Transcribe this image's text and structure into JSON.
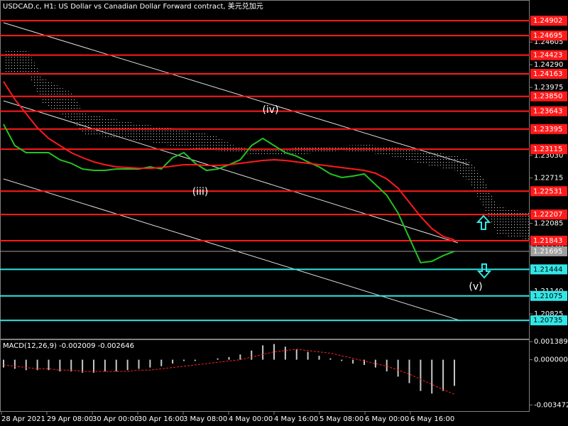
{
  "chart_data": {
    "type": "line",
    "title": "USDCAD.c, H1:  US Dollar vs Canadian Dollar Forward contract, 美元兑加元",
    "ylim": [
      1.205,
      1.2519
    ],
    "yticks": [
      1.24605,
      {
        "value": 1.2429,
        "label": "1.24290"
      },
      1.23975,
      {
        "value": 1.2303,
        "label": "1.23030"
      },
      1.22715,
      1.22085,
      {
        "value": 1.2177,
        "label": "1.21770"
      },
      {
        "value": 1.2114,
        "label": "1.21140"
      },
      1.20825
    ],
    "x_axis_labels": [
      "28 Apr 2021",
      "29 Apr 08:00",
      "30 Apr 00:00",
      "30 Apr 16:00",
      "3 May 08:00",
      "4 May 00:00",
      "4 May 16:00",
      "5 May 08:00",
      "6 May 00:00",
      "6 May 16:00"
    ],
    "series": [
      {
        "name": "Price",
        "color": "#22c322",
        "values": [
          1.23462,
          1.23166,
          1.23067,
          1.23067,
          1.23067,
          1.22968,
          1.22919,
          1.2284,
          1.2282,
          1.2282,
          1.2284,
          1.2284,
          1.2284,
          1.2287,
          1.2284,
          1.22998,
          1.23067,
          1.22919,
          1.2282,
          1.2284,
          1.22899,
          1.22968,
          1.23166,
          1.23265,
          1.23166,
          1.23067,
          1.23018,
          1.22939,
          1.2287,
          1.22771,
          1.22722,
          1.22741,
          1.22771,
          1.22623,
          1.22475,
          1.22228,
          1.21882,
          1.21537,
          1.21556,
          1.21635,
          1.21695
        ]
      },
      {
        "name": "MA",
        "color": "#ff1a1a",
        "values": [
          1.24055,
          1.23808,
          1.2361,
          1.23413,
          1.23265,
          1.23166,
          1.23067,
          1.22998,
          1.22939,
          1.22899,
          1.2287,
          1.2286,
          1.2285,
          1.2285,
          1.2286,
          1.2288,
          1.22899,
          1.22899,
          1.22889,
          1.22889,
          1.22899,
          1.22919,
          1.22939,
          1.22959,
          1.22968,
          1.22959,
          1.22939,
          1.22919,
          1.22899,
          1.2288,
          1.2286,
          1.2284,
          1.2282,
          1.22781,
          1.22702,
          1.22574,
          1.22376,
          1.22179,
          1.22011,
          1.21902,
          1.21853
        ]
      }
    ],
    "current_price": 1.21695,
    "current_price_color": "#9e9e9e",
    "resistance_levels": {
      "color": "#ff1a1a",
      "values": [
        1.24902,
        1.24695,
        1.24423,
        1.24163,
        {
          "value": 1.2385,
          "label": "1.23850"
        },
        1.23643,
        1.23395,
        1.23115,
        1.22531,
        1.22207,
        1.21843
      ]
    },
    "support_levels": {
      "color": "#33e6e6",
      "values": [
        1.21444,
        1.21075,
        1.20735
      ]
    },
    "annotations": [
      {
        "text": "(iii)",
        "price": 1.2252
      },
      {
        "text": "(iv)",
        "price": 1.2366
      },
      {
        "text": "(v)",
        "price": 1.212
      }
    ],
    "macd": {
      "title": "MACD(12,26,9) -0.002009 -0.002646",
      "ylim": [
        -0.004,
        0.00145
      ],
      "yticks": [
        0.001389,
        {
          "value": 0,
          "label": "0.000000"
        },
        -0.003472
      ],
      "histogram": {
        "color": "#c8c8c8",
        "values": [
          -0.0006,
          -0.0007,
          -0.0008,
          -0.0008,
          -0.0008,
          -0.0009,
          -0.0009,
          -0.001,
          -0.001,
          -0.0009,
          -0.0009,
          -0.0008,
          -0.0007,
          -0.0006,
          -0.0005,
          -0.0003,
          -0.0001,
          -0.0001,
          0,
          0.0001,
          0.0002,
          0.0004,
          0.0007,
          0.0011,
          0.0012,
          0.001,
          0.0008,
          0.0006,
          0.0003,
          0.0001,
          -0.0001,
          -0.0003,
          -0.0004,
          -0.0006,
          -0.0009,
          -0.0013,
          -0.0018,
          -0.0024,
          -0.0026,
          -0.0024,
          -0.002009
        ]
      },
      "signal": {
        "color": "#ff2020",
        "values": [
          -0.0004,
          -0.0005,
          -0.0006,
          -0.0007,
          -0.0007,
          -0.0008,
          -0.0008,
          -0.0009,
          -0.0009,
          -0.0009,
          -0.0009,
          -0.0009,
          -0.0008,
          -0.0008,
          -0.0007,
          -0.0006,
          -0.0005,
          -0.0004,
          -0.0003,
          -0.0002,
          -0.0001,
          0,
          0.0002,
          0.0004,
          0.0006,
          0.0007,
          0.0008,
          0.0007,
          0.0006,
          0.0005,
          0.0003,
          0.0001,
          -0.0001,
          -0.0003,
          -0.0005,
          -0.0008,
          -0.0011,
          -0.0015,
          -0.0019,
          -0.0023,
          -0.002646
        ]
      }
    }
  }
}
